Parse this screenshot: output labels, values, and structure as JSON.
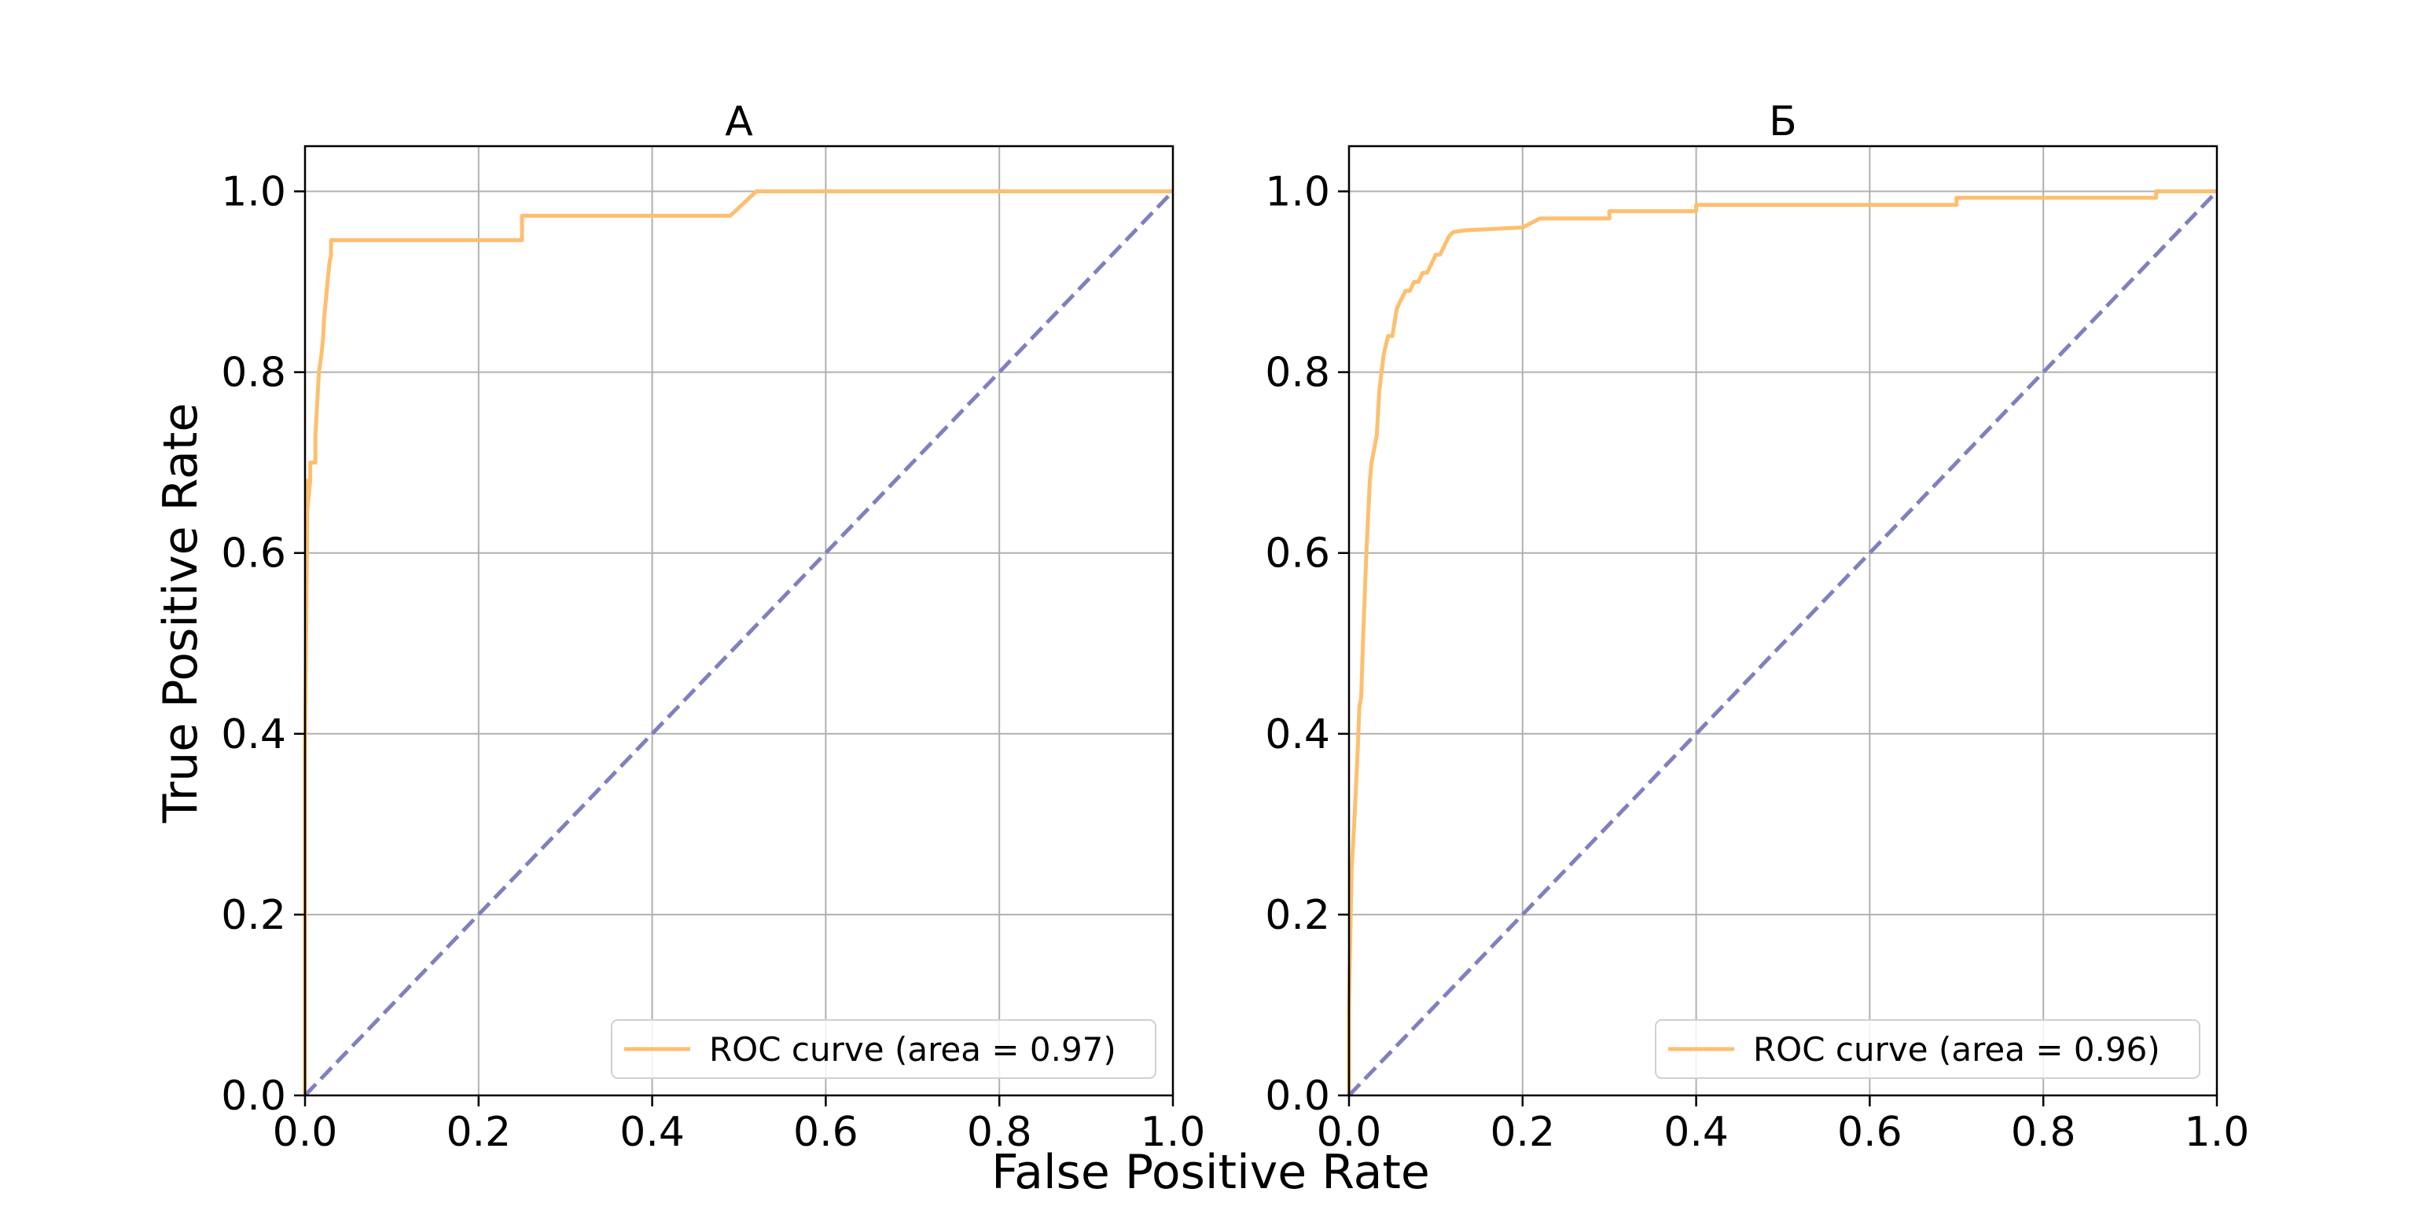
{
  "figure": {
    "xlabel": "False Positive Rate",
    "ylabel": "True Positive Rate"
  },
  "chart_data": [
    {
      "type": "line",
      "title": "А",
      "xlim": [
        0,
        1
      ],
      "ylim": [
        0,
        1.05
      ],
      "xticks": [
        "0.0",
        "0.2",
        "0.4",
        "0.6",
        "0.8",
        "1.0"
      ],
      "yticks": [
        "0.0",
        "0.2",
        "0.4",
        "0.6",
        "0.8",
        "1.0"
      ],
      "grid": true,
      "legend_position": "lower-right",
      "series": [
        {
          "name": "ROC curve (area = 0.97)",
          "color": "#fdbf6f",
          "style": "solid",
          "x": [
            0.0,
            0.0,
            0.003,
            0.003,
            0.006,
            0.006,
            0.012,
            0.012,
            0.016,
            0.019,
            0.021,
            0.022,
            0.024,
            0.026,
            0.028,
            0.03,
            0.03,
            0.25,
            0.25,
            0.49,
            0.52,
            0.52,
            1.0
          ],
          "y": [
            0.0,
            0.38,
            0.68,
            0.65,
            0.68,
            0.7,
            0.7,
            0.73,
            0.8,
            0.82,
            0.84,
            0.86,
            0.88,
            0.9,
            0.92,
            0.93,
            0.946,
            0.946,
            0.973,
            0.973,
            1.0,
            1.0,
            1.0
          ]
        },
        {
          "name": "",
          "color": "#8080c0",
          "style": "dashed",
          "x": [
            0,
            1
          ],
          "y": [
            0,
            1
          ]
        }
      ]
    },
    {
      "type": "line",
      "title": "Б",
      "xlim": [
        0,
        1
      ],
      "ylim": [
        0,
        1.05
      ],
      "xticks": [
        "0.0",
        "0.2",
        "0.4",
        "0.6",
        "0.8",
        "1.0"
      ],
      "yticks": [
        "0.0",
        "0.2",
        "0.4",
        "0.6",
        "0.8",
        "1.0"
      ],
      "grid": true,
      "legend_position": "lower-right",
      "series": [
        {
          "name": "ROC curve (area = 0.96)",
          "color": "#fdbf6f",
          "style": "solid",
          "x": [
            0.0,
            0.0,
            0.003,
            0.006,
            0.01,
            0.012,
            0.014,
            0.016,
            0.018,
            0.02,
            0.022,
            0.024,
            0.026,
            0.028,
            0.03,
            0.032,
            0.035,
            0.04,
            0.045,
            0.05,
            0.055,
            0.06,
            0.065,
            0.07,
            0.075,
            0.08,
            0.085,
            0.09,
            0.095,
            0.1,
            0.105,
            0.11,
            0.115,
            0.12,
            0.135,
            0.2,
            0.22,
            0.3,
            0.3,
            0.4,
            0.4,
            0.7,
            0.7,
            0.93,
            0.93,
            1.0
          ],
          "y": [
            0.0,
            0.1,
            0.25,
            0.3,
            0.38,
            0.43,
            0.44,
            0.5,
            0.55,
            0.6,
            0.64,
            0.68,
            0.7,
            0.71,
            0.72,
            0.73,
            0.78,
            0.82,
            0.84,
            0.84,
            0.87,
            0.88,
            0.89,
            0.89,
            0.9,
            0.9,
            0.91,
            0.91,
            0.92,
            0.93,
            0.93,
            0.94,
            0.95,
            0.955,
            0.957,
            0.96,
            0.97,
            0.97,
            0.978,
            0.978,
            0.985,
            0.985,
            0.993,
            0.993,
            1.0,
            1.0
          ]
        },
        {
          "name": "",
          "color": "#8080c0",
          "style": "dashed",
          "x": [
            0,
            1
          ],
          "y": [
            0,
            1
          ]
        }
      ]
    }
  ]
}
